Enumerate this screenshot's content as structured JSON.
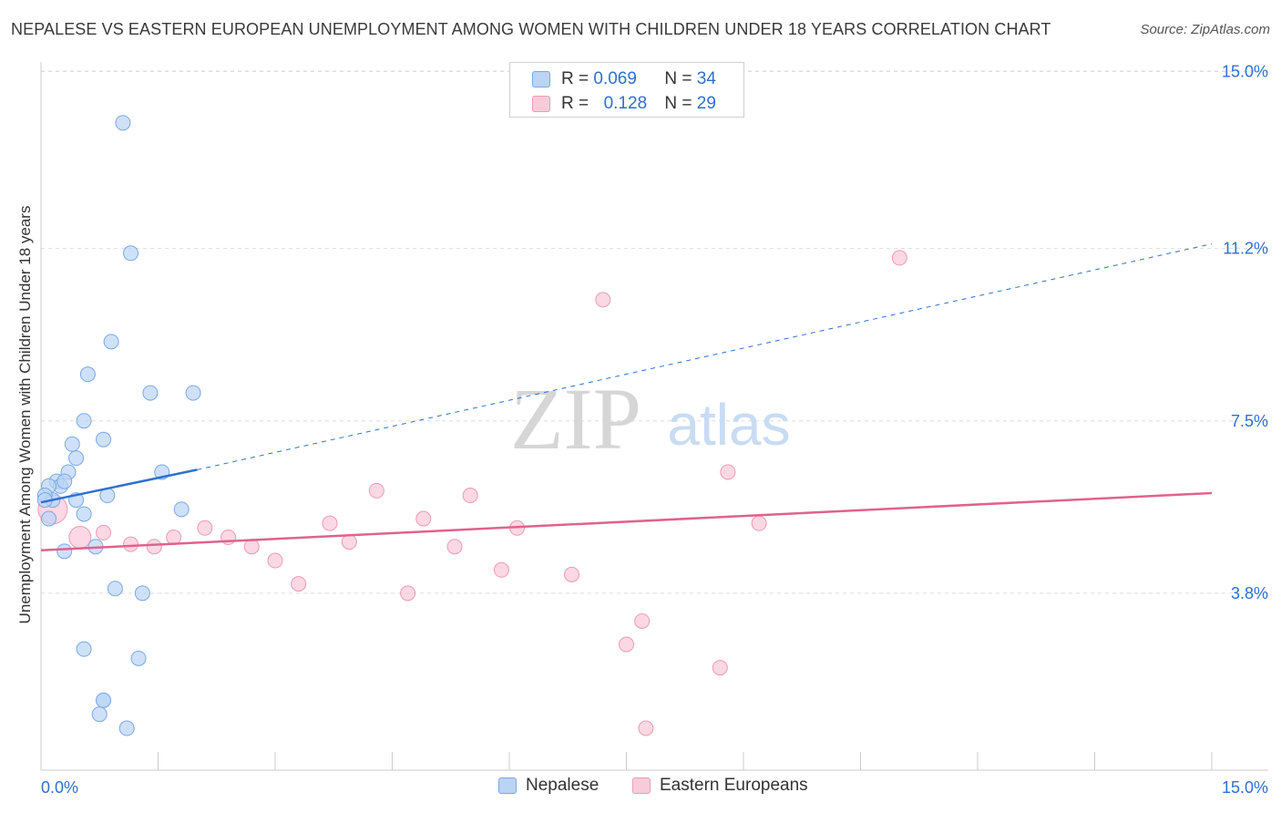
{
  "header": {
    "title": "NEPALESE VS EASTERN EUROPEAN UNEMPLOYMENT AMONG WOMEN WITH CHILDREN UNDER 18 YEARS CORRELATION CHART",
    "source": "Source: ZipAtlas.com"
  },
  "legend": {
    "r_label": "R =",
    "n_label": "N =",
    "series": [
      {
        "r": "0.069",
        "n": "34"
      },
      {
        "r": "0.128",
        "n": "29"
      }
    ],
    "bottom": [
      "Nepalese",
      "Eastern Europeans"
    ]
  },
  "watermark": {
    "zip": "ZIP",
    "atlas": "atlas"
  },
  "colors": {
    "blue": "#2f72d0",
    "blue_fill": "#b9d4f5",
    "blue_stroke": "#7aa8e6",
    "pink": "#e0628d",
    "pink_fill": "#f9cbd9",
    "pink_stroke": "#ee9ab4",
    "tick_text": "#2f6fcc",
    "grid": "#dddddd"
  },
  "chart_data": {
    "type": "scatter",
    "title": "NEPALESE VS EASTERN EUROPEAN UNEMPLOYMENT AMONG WOMEN WITH CHILDREN UNDER 18 YEARS CORRELATION CHART",
    "xlabel": "",
    "ylabel": "Unemployment Among Women with Children Under 18 years",
    "xlim": [
      0,
      15
    ],
    "ylim": [
      0,
      15.5
    ],
    "x_tick_labels": [
      {
        "value": 0,
        "label": "0.0%"
      },
      {
        "value": 15,
        "label": "15.0%"
      }
    ],
    "y_ticks": [
      {
        "value": 3.8,
        "label": "3.8%"
      },
      {
        "value": 7.5,
        "label": "7.5%"
      },
      {
        "value": 11.2,
        "label": "11.2%"
      },
      {
        "value": 15.0,
        "label": "15.0%"
      }
    ],
    "series": [
      {
        "name": "Nepalese",
        "r": 0.069,
        "n": 34,
        "points": [
          [
            1.05,
            13.9
          ],
          [
            1.15,
            11.1
          ],
          [
            0.9,
            9.2
          ],
          [
            0.6,
            8.5
          ],
          [
            1.4,
            8.1
          ],
          [
            1.95,
            8.1
          ],
          [
            0.55,
            7.5
          ],
          [
            0.4,
            7.0
          ],
          [
            0.8,
            7.1
          ],
          [
            0.45,
            6.7
          ],
          [
            0.35,
            6.4
          ],
          [
            1.55,
            6.4
          ],
          [
            0.2,
            6.2
          ],
          [
            0.25,
            6.1
          ],
          [
            0.1,
            6.1
          ],
          [
            0.3,
            6.2
          ],
          [
            0.85,
            5.9
          ],
          [
            0.15,
            5.8
          ],
          [
            0.45,
            5.8
          ],
          [
            0.05,
            5.9
          ],
          [
            1.8,
            5.6
          ],
          [
            0.55,
            5.5
          ],
          [
            0.1,
            5.4
          ],
          [
            0.3,
            4.7
          ],
          [
            0.7,
            4.8
          ],
          [
            0.95,
            3.9
          ],
          [
            1.3,
            3.8
          ],
          [
            0.55,
            2.6
          ],
          [
            1.25,
            2.4
          ],
          [
            0.8,
            1.5
          ],
          [
            0.8,
            1.5
          ],
          [
            0.75,
            1.2
          ],
          [
            1.1,
            0.9
          ],
          [
            0.05,
            5.8
          ]
        ],
        "trend": {
          "x0": 0.0,
          "y0": 5.75,
          "x1": 2.0,
          "y1": 6.45,
          "dashed_to_x": 15.0,
          "dashed_to_y": 11.3
        }
      },
      {
        "name": "Eastern Europeans",
        "r": 0.128,
        "n": 29,
        "points": [
          [
            11.0,
            11.0
          ],
          [
            7.2,
            10.1
          ],
          [
            8.8,
            6.4
          ],
          [
            4.3,
            6.0
          ],
          [
            5.5,
            5.9
          ],
          [
            0.15,
            5.6
          ],
          [
            4.9,
            5.4
          ],
          [
            3.7,
            5.3
          ],
          [
            9.2,
            5.3
          ],
          [
            6.1,
            5.2
          ],
          [
            2.1,
            5.2
          ],
          [
            1.7,
            5.0
          ],
          [
            0.8,
            5.1
          ],
          [
            0.5,
            5.0
          ],
          [
            2.4,
            5.0
          ],
          [
            3.95,
            4.9
          ],
          [
            1.15,
            4.85
          ],
          [
            1.45,
            4.8
          ],
          [
            2.7,
            4.8
          ],
          [
            5.3,
            4.8
          ],
          [
            3.0,
            4.5
          ],
          [
            5.9,
            4.3
          ],
          [
            6.8,
            4.2
          ],
          [
            3.3,
            4.0
          ],
          [
            4.7,
            3.8
          ],
          [
            7.7,
            3.2
          ],
          [
            7.5,
            2.7
          ],
          [
            8.7,
            2.2
          ],
          [
            7.75,
            0.9
          ]
        ],
        "trend": {
          "x0": 0.0,
          "y0": 4.72,
          "x1": 15.0,
          "y1": 5.95
        }
      }
    ]
  }
}
